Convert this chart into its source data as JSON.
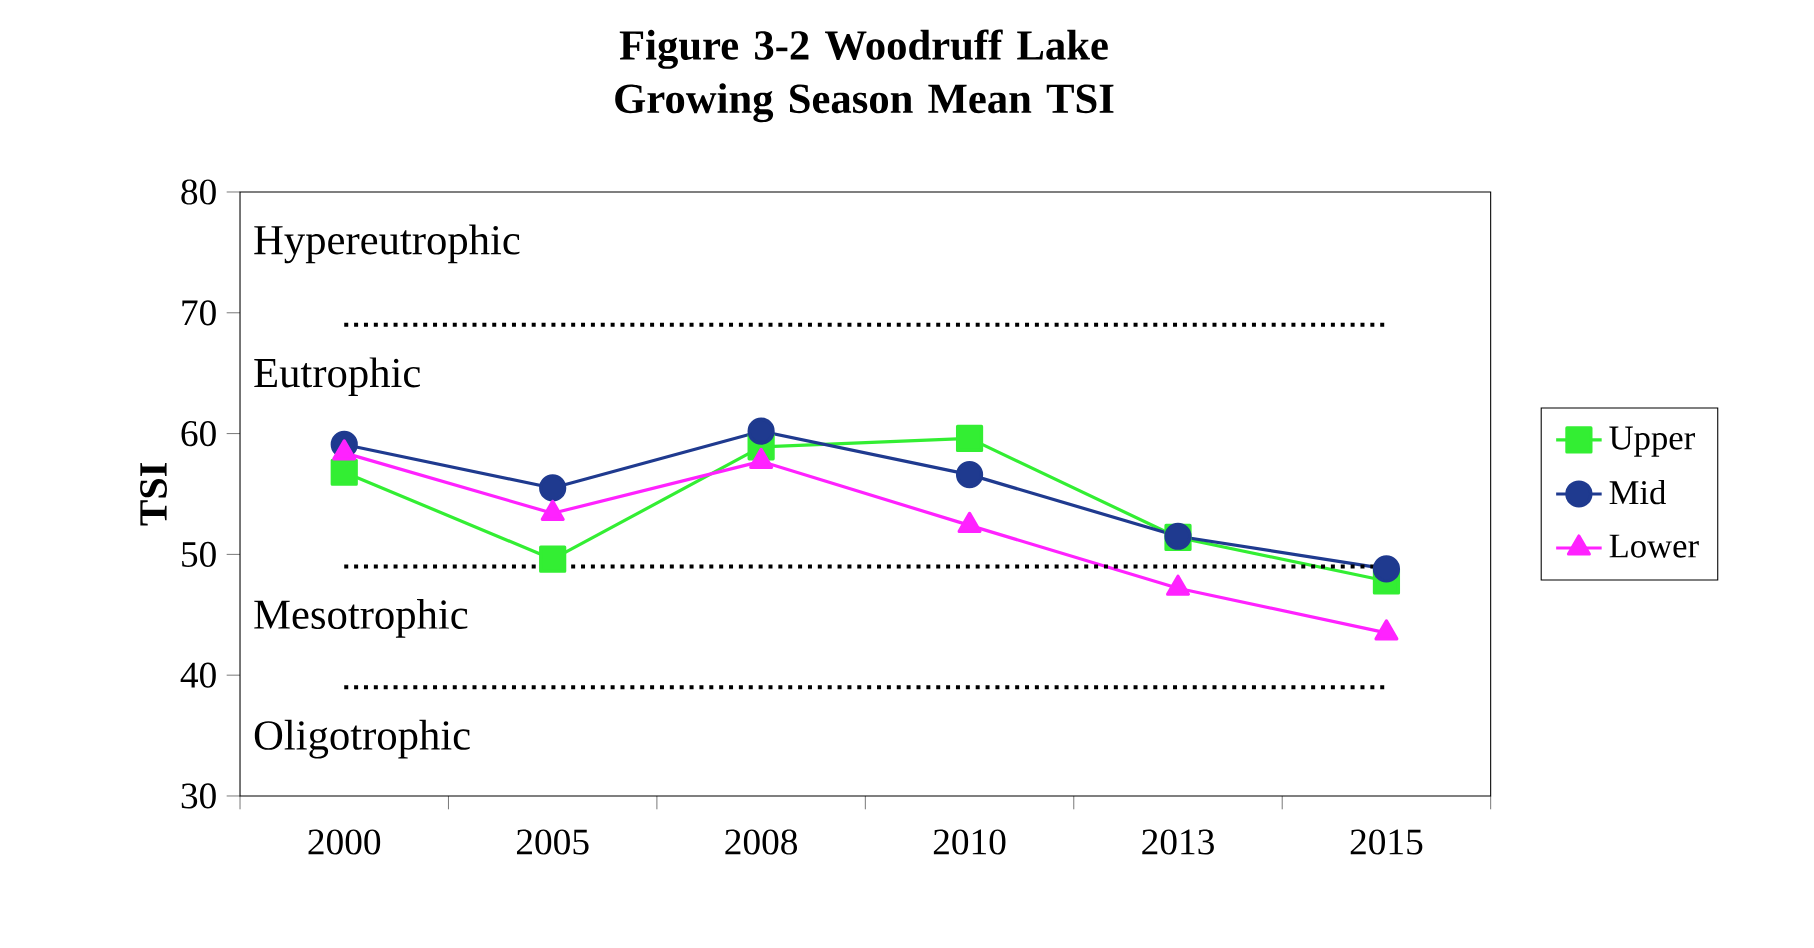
{
  "chart_data": {
    "type": "line",
    "title": "Figure 3-2 Woodruff Lake Growing Season Mean TSI",
    "ylabel": "TSI",
    "categories": [
      "2000",
      "2005",
      "2008",
      "2010",
      "2013",
      "2015"
    ],
    "series": [
      {
        "name": "Upper",
        "color": "#33ee33",
        "marker": "square",
        "values": [
          56.8,
          49.6,
          58.9,
          59.6,
          51.4,
          47.8
        ]
      },
      {
        "name": "Mid",
        "color": "#1f3a8f",
        "marker": "circle",
        "values": [
          59.1,
          55.5,
          60.2,
          56.6,
          51.5,
          48.8
        ]
      },
      {
        "name": "Lower",
        "color": "#ff22ff",
        "marker": "triangle",
        "values": [
          58.4,
          53.4,
          57.7,
          52.4,
          47.2,
          43.5
        ]
      }
    ],
    "ylim": [
      30,
      80
    ],
    "yticks": [
      30,
      40,
      50,
      60,
      70,
      80
    ],
    "ref_lines": [
      {
        "axis": "y",
        "value": 69,
        "line_style": "dotted"
      },
      {
        "axis": "y",
        "value": 49,
        "line_style": "dotted"
      },
      {
        "axis": "y",
        "value": 39,
        "line_style": "dotted"
      }
    ],
    "annotations": [
      "Hypereutrophic",
      "Eutrophic",
      "Mesotrophic",
      "Oligotrophic"
    ],
    "legend": "right",
    "grid": false,
    "line_style": "solid"
  }
}
